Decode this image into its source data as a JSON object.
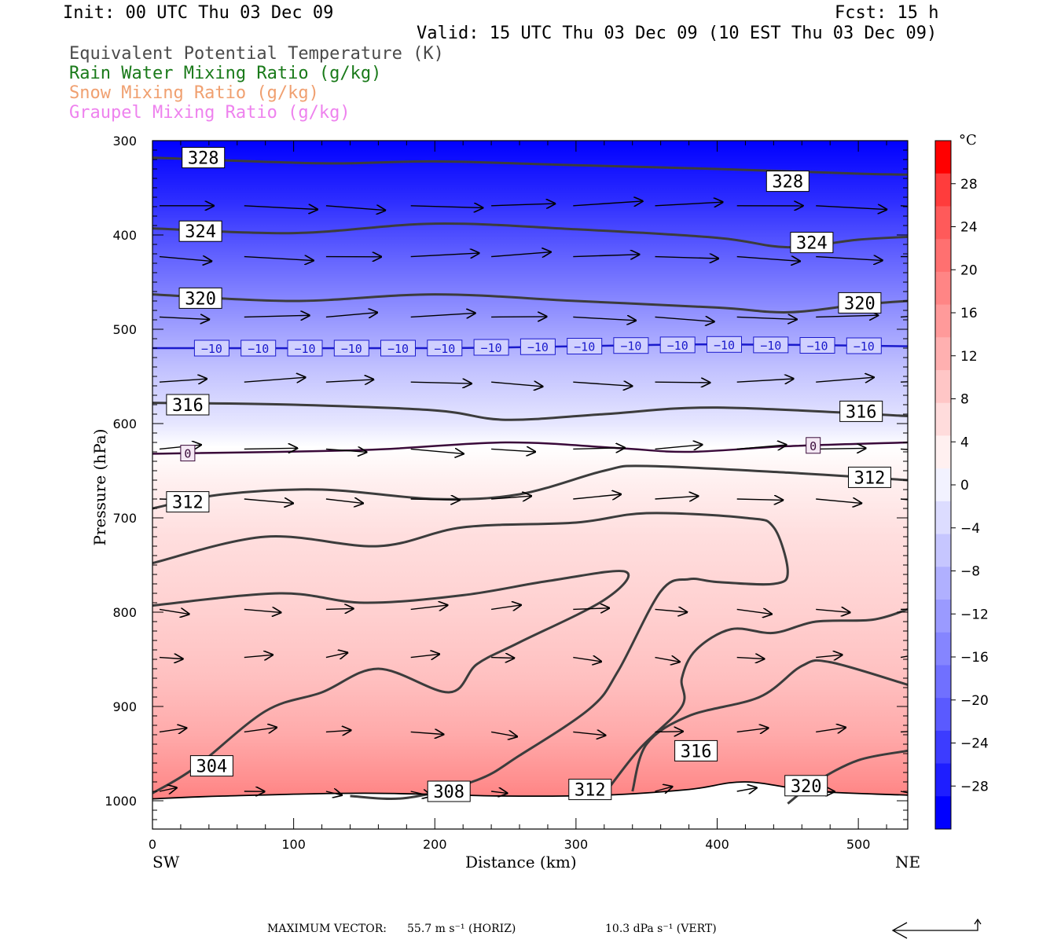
{
  "header": {
    "init": "Init: 00 UTC Thu 03 Dec 09",
    "fcst": "Fcst:   15 h",
    "valid": "Valid: 15 UTC Thu 03 Dec 09 (10 EST Thu 03 Dec 09)"
  },
  "legend": [
    {
      "label": "Equivalent Potential Temperature (K)",
      "color": "#4a4a4a"
    },
    {
      "label": "Rain Water Mixing Ratio (g/kg)",
      "color": "#1a7a1a"
    },
    {
      "label": "Snow Mixing Ratio (g/kg)",
      "color": "#f0a070"
    },
    {
      "label": "Graupel Mixing Ratio (g/kg)",
      "color": "#ee82ee"
    }
  ],
  "chart_data": {
    "type": "cross-section",
    "xlabel": "Distance (km)",
    "ylabel": "Pressure (hPa)",
    "xlim": [
      0,
      535
    ],
    "ylim": [
      1030,
      300
    ],
    "x_ticks": [
      "0",
      "100",
      "200",
      "300",
      "400",
      "500"
    ],
    "y_ticks": [
      "300",
      "400",
      "500",
      "600",
      "700",
      "800",
      "900",
      "1000"
    ],
    "x_start_label": "SW",
    "x_end_label": "NE",
    "colorbar": {
      "unit": "°C",
      "ticks": [
        "28",
        "24",
        "20",
        "16",
        "12",
        "8",
        "4",
        "0",
        "−4",
        "−8",
        "−12",
        "−16",
        "−20",
        "−24",
        "−28"
      ],
      "colors_top_to_bottom": [
        "#ff0000",
        "#ff3c3c",
        "#ff5a5a",
        "#ff7070",
        "#ff8585",
        "#ff9a9a",
        "#ffb0b0",
        "#ffc6c6",
        "#ffdcdc",
        "#fff0f0",
        "#f2f2ff",
        "#dcdcff",
        "#c6c6ff",
        "#b0b0ff",
        "#9a9aff",
        "#8585ff",
        "#7070ff",
        "#5a5aff",
        "#3c3cff",
        "#1e1eff",
        "#0000ff"
      ],
      "range": [
        -32,
        32
      ]
    },
    "theta_e_contours": [
      {
        "level": 328,
        "points": [
          [
            0,
            318
          ],
          [
            120,
            324
          ],
          [
            200,
            322
          ],
          [
            300,
            326
          ],
          [
            400,
            330
          ],
          [
            500,
            335
          ],
          [
            535,
            336
          ]
        ]
      },
      {
        "level": 324,
        "points": [
          [
            0,
            393
          ],
          [
            100,
            398
          ],
          [
            200,
            388
          ],
          [
            300,
            394
          ],
          [
            400,
            403
          ],
          [
            450,
            413
          ],
          [
            500,
            405
          ],
          [
            535,
            402
          ]
        ]
      },
      {
        "level": 320,
        "points": [
          [
            0,
            463
          ],
          [
            100,
            470
          ],
          [
            200,
            463
          ],
          [
            300,
            470
          ],
          [
            400,
            477
          ],
          [
            450,
            482
          ],
          [
            500,
            474
          ],
          [
            535,
            470
          ]
        ]
      },
      {
        "level": 316,
        "points": [
          [
            0,
            578
          ],
          [
            100,
            580
          ],
          [
            200,
            586
          ],
          [
            250,
            596
          ],
          [
            320,
            590
          ],
          [
            400,
            583
          ],
          [
            535,
            592
          ]
        ]
      },
      {
        "level": 312,
        "points": [
          [
            0,
            690
          ],
          [
            50,
            675
          ],
          [
            120,
            670
          ],
          [
            200,
            680
          ],
          [
            260,
            675
          ],
          [
            320,
            650
          ],
          [
            350,
            645
          ],
          [
            450,
            652
          ],
          [
            535,
            660
          ]
        ]
      },
      {
        "level": 308,
        "points": [
          [
            0,
            748
          ],
          [
            80,
            720
          ],
          [
            160,
            730
          ],
          [
            220,
            710
          ],
          [
            300,
            705
          ],
          [
            350,
            695
          ],
          [
            420,
            700
          ],
          [
            440,
            710
          ],
          [
            450,
            757
          ],
          [
            440,
            770
          ],
          [
            400,
            768
          ],
          [
            380,
            765
          ],
          [
            360,
            778
          ],
          [
            330,
            862
          ],
          [
            310,
            902
          ],
          [
            260,
            952
          ],
          [
            230,
            978
          ],
          [
            180,
            997
          ],
          [
            140,
            995
          ]
        ]
      },
      {
        "level": 304,
        "points": [
          [
            0,
            793
          ],
          [
            90,
            780
          ],
          [
            150,
            790
          ],
          [
            220,
            782
          ],
          [
            280,
            767
          ],
          [
            335,
            757
          ],
          [
            320,
            787
          ],
          [
            260,
            832
          ],
          [
            230,
            855
          ],
          [
            210,
            885
          ],
          [
            160,
            860
          ],
          [
            120,
            885
          ],
          [
            80,
            905
          ],
          [
            30,
            965
          ],
          [
            0,
            992
          ]
        ]
      },
      {
        "level": 316,
        "points": [
          [
            535,
            797
          ],
          [
            510,
            808
          ],
          [
            470,
            810
          ],
          [
            440,
            822
          ],
          [
            410,
            818
          ],
          [
            385,
            840
          ],
          [
            375,
            870
          ],
          [
            375,
            900
          ],
          [
            345,
            945
          ],
          [
            320,
            993
          ]
        ]
      },
      {
        "level": 320,
        "points": [
          [
            535,
            877
          ],
          [
            480,
            853
          ],
          [
            460,
            857
          ],
          [
            430,
            890
          ],
          [
            380,
            910
          ],
          [
            350,
            940
          ],
          [
            340,
            990
          ]
        ]
      },
      {
        "level": 324,
        "points": [
          [
            535,
            947
          ],
          [
            500,
            957
          ],
          [
            470,
            980
          ],
          [
            450,
            1003
          ]
        ]
      }
    ],
    "theta_e_labels": [
      {
        "text": "328",
        "x": 36,
        "p": 318
      },
      {
        "text": "328",
        "x": 450,
        "p": 343
      },
      {
        "text": "324",
        "x": 34,
        "p": 396
      },
      {
        "text": "324",
        "x": 467,
        "p": 408
      },
      {
        "text": "320",
        "x": 34,
        "p": 467
      },
      {
        "text": "320",
        "x": 501,
        "p": 472
      },
      {
        "text": "316",
        "x": 25,
        "p": 580
      },
      {
        "text": "316",
        "x": 502,
        "p": 587
      },
      {
        "text": "312",
        "x": 25,
        "p": 683
      },
      {
        "text": "312",
        "x": 508,
        "p": 657
      },
      {
        "text": "304",
        "x": 42,
        "p": 963
      },
      {
        "text": "308",
        "x": 210,
        "p": 990
      },
      {
        "text": "312",
        "x": 310,
        "p": 988
      },
      {
        "text": "316",
        "x": 385,
        "p": 947
      },
      {
        "text": "320",
        "x": 463,
        "p": 984
      }
    ],
    "isotherms": [
      {
        "level": -10,
        "color": "#1a1acc",
        "points": [
          [
            0,
            520
          ],
          [
            200,
            520
          ],
          [
            300,
            518
          ],
          [
            400,
            516
          ],
          [
            535,
            518
          ]
        ],
        "labels": [
          42,
          75,
          108,
          141,
          174,
          207,
          240,
          273,
          306,
          339,
          372,
          405,
          438,
          471,
          504
        ]
      },
      {
        "level": 0,
        "color": "#3a0a3a",
        "points": [
          [
            0,
            632
          ],
          [
            150,
            628
          ],
          [
            250,
            620
          ],
          [
            330,
            626
          ],
          [
            380,
            630
          ],
          [
            450,
            624
          ],
          [
            535,
            620
          ]
        ],
        "labels": [
          25,
          468
        ]
      }
    ],
    "temperature_bands": [
      {
        "p_top": 300,
        "p_bot": 1030,
        "top": "#0000ff",
        "mid": "#ffffff",
        "mid_p": 620,
        "bot": "#ff5a5a"
      }
    ],
    "surface_pressure": [
      [
        0,
        998
      ],
      [
        50,
        995
      ],
      [
        150,
        992
      ],
      [
        250,
        995
      ],
      [
        320,
        994
      ],
      [
        380,
        988
      ],
      [
        420,
        980
      ],
      [
        470,
        990
      ],
      [
        535,
        994
      ]
    ],
    "wind_vectors": {
      "rows": [
        {
          "p": 369,
          "len": 0.9
        },
        {
          "p": 423,
          "len": 0.85
        },
        {
          "p": 487,
          "len": 0.8
        },
        {
          "p": 556,
          "len": 0.75
        },
        {
          "p": 627,
          "len": 0.65
        },
        {
          "p": 680,
          "len": 0.6
        },
        {
          "p": 797,
          "len": 0.45
        },
        {
          "p": 848,
          "len": 0.35
        },
        {
          "p": 927,
          "len": 0.4
        },
        {
          "p": 990,
          "len": 0.25
        }
      ],
      "columns_km": [
        5,
        65,
        123,
        183,
        240,
        298,
        356,
        414,
        470,
        530
      ]
    },
    "max_vector": {
      "label": "MAXIMUM VECTOR:",
      "horiz": "55.7 m s⁻¹ (HORIZ)",
      "vert": "10.3 dPa s⁻¹ (VERT)"
    }
  }
}
